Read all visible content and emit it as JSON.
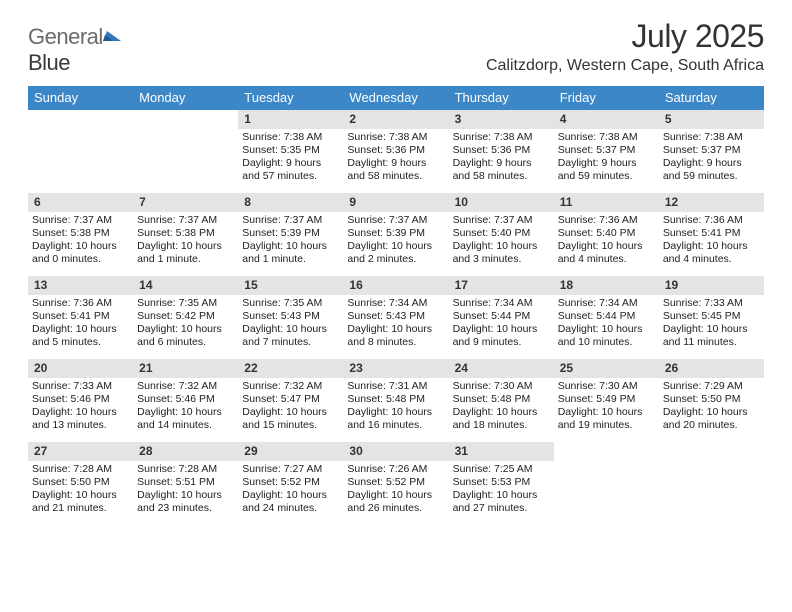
{
  "logo": {
    "word1": "General",
    "word2": "Blue"
  },
  "title": "July 2025",
  "location": "Calitzdorp, Western Cape, South Africa",
  "header_bg": "#3b87c8",
  "daynum_bg": "#e4e4e4",
  "weekdays": [
    "Sunday",
    "Monday",
    "Tuesday",
    "Wednesday",
    "Thursday",
    "Friday",
    "Saturday"
  ],
  "weeks": [
    [
      null,
      null,
      {
        "n": "1",
        "sr": "7:38 AM",
        "ss": "5:35 PM",
        "dl": "9 hours and 57 minutes."
      },
      {
        "n": "2",
        "sr": "7:38 AM",
        "ss": "5:36 PM",
        "dl": "9 hours and 58 minutes."
      },
      {
        "n": "3",
        "sr": "7:38 AM",
        "ss": "5:36 PM",
        "dl": "9 hours and 58 minutes."
      },
      {
        "n": "4",
        "sr": "7:38 AM",
        "ss": "5:37 PM",
        "dl": "9 hours and 59 minutes."
      },
      {
        "n": "5",
        "sr": "7:38 AM",
        "ss": "5:37 PM",
        "dl": "9 hours and 59 minutes."
      }
    ],
    [
      {
        "n": "6",
        "sr": "7:37 AM",
        "ss": "5:38 PM",
        "dl": "10 hours and 0 minutes."
      },
      {
        "n": "7",
        "sr": "7:37 AM",
        "ss": "5:38 PM",
        "dl": "10 hours and 1 minute."
      },
      {
        "n": "8",
        "sr": "7:37 AM",
        "ss": "5:39 PM",
        "dl": "10 hours and 1 minute."
      },
      {
        "n": "9",
        "sr": "7:37 AM",
        "ss": "5:39 PM",
        "dl": "10 hours and 2 minutes."
      },
      {
        "n": "10",
        "sr": "7:37 AM",
        "ss": "5:40 PM",
        "dl": "10 hours and 3 minutes."
      },
      {
        "n": "11",
        "sr": "7:36 AM",
        "ss": "5:40 PM",
        "dl": "10 hours and 4 minutes."
      },
      {
        "n": "12",
        "sr": "7:36 AM",
        "ss": "5:41 PM",
        "dl": "10 hours and 4 minutes."
      }
    ],
    [
      {
        "n": "13",
        "sr": "7:36 AM",
        "ss": "5:41 PM",
        "dl": "10 hours and 5 minutes."
      },
      {
        "n": "14",
        "sr": "7:35 AM",
        "ss": "5:42 PM",
        "dl": "10 hours and 6 minutes."
      },
      {
        "n": "15",
        "sr": "7:35 AM",
        "ss": "5:43 PM",
        "dl": "10 hours and 7 minutes."
      },
      {
        "n": "16",
        "sr": "7:34 AM",
        "ss": "5:43 PM",
        "dl": "10 hours and 8 minutes."
      },
      {
        "n": "17",
        "sr": "7:34 AM",
        "ss": "5:44 PM",
        "dl": "10 hours and 9 minutes."
      },
      {
        "n": "18",
        "sr": "7:34 AM",
        "ss": "5:44 PM",
        "dl": "10 hours and 10 minutes."
      },
      {
        "n": "19",
        "sr": "7:33 AM",
        "ss": "5:45 PM",
        "dl": "10 hours and 11 minutes."
      }
    ],
    [
      {
        "n": "20",
        "sr": "7:33 AM",
        "ss": "5:46 PM",
        "dl": "10 hours and 13 minutes."
      },
      {
        "n": "21",
        "sr": "7:32 AM",
        "ss": "5:46 PM",
        "dl": "10 hours and 14 minutes."
      },
      {
        "n": "22",
        "sr": "7:32 AM",
        "ss": "5:47 PM",
        "dl": "10 hours and 15 minutes."
      },
      {
        "n": "23",
        "sr": "7:31 AM",
        "ss": "5:48 PM",
        "dl": "10 hours and 16 minutes."
      },
      {
        "n": "24",
        "sr": "7:30 AM",
        "ss": "5:48 PM",
        "dl": "10 hours and 18 minutes."
      },
      {
        "n": "25",
        "sr": "7:30 AM",
        "ss": "5:49 PM",
        "dl": "10 hours and 19 minutes."
      },
      {
        "n": "26",
        "sr": "7:29 AM",
        "ss": "5:50 PM",
        "dl": "10 hours and 20 minutes."
      }
    ],
    [
      {
        "n": "27",
        "sr": "7:28 AM",
        "ss": "5:50 PM",
        "dl": "10 hours and 21 minutes."
      },
      {
        "n": "28",
        "sr": "7:28 AM",
        "ss": "5:51 PM",
        "dl": "10 hours and 23 minutes."
      },
      {
        "n": "29",
        "sr": "7:27 AM",
        "ss": "5:52 PM",
        "dl": "10 hours and 24 minutes."
      },
      {
        "n": "30",
        "sr": "7:26 AM",
        "ss": "5:52 PM",
        "dl": "10 hours and 26 minutes."
      },
      {
        "n": "31",
        "sr": "7:25 AM",
        "ss": "5:53 PM",
        "dl": "10 hours and 27 minutes."
      },
      null,
      null
    ]
  ],
  "labels": {
    "sunrise": "Sunrise:",
    "sunset": "Sunset:",
    "daylight": "Daylight:"
  }
}
